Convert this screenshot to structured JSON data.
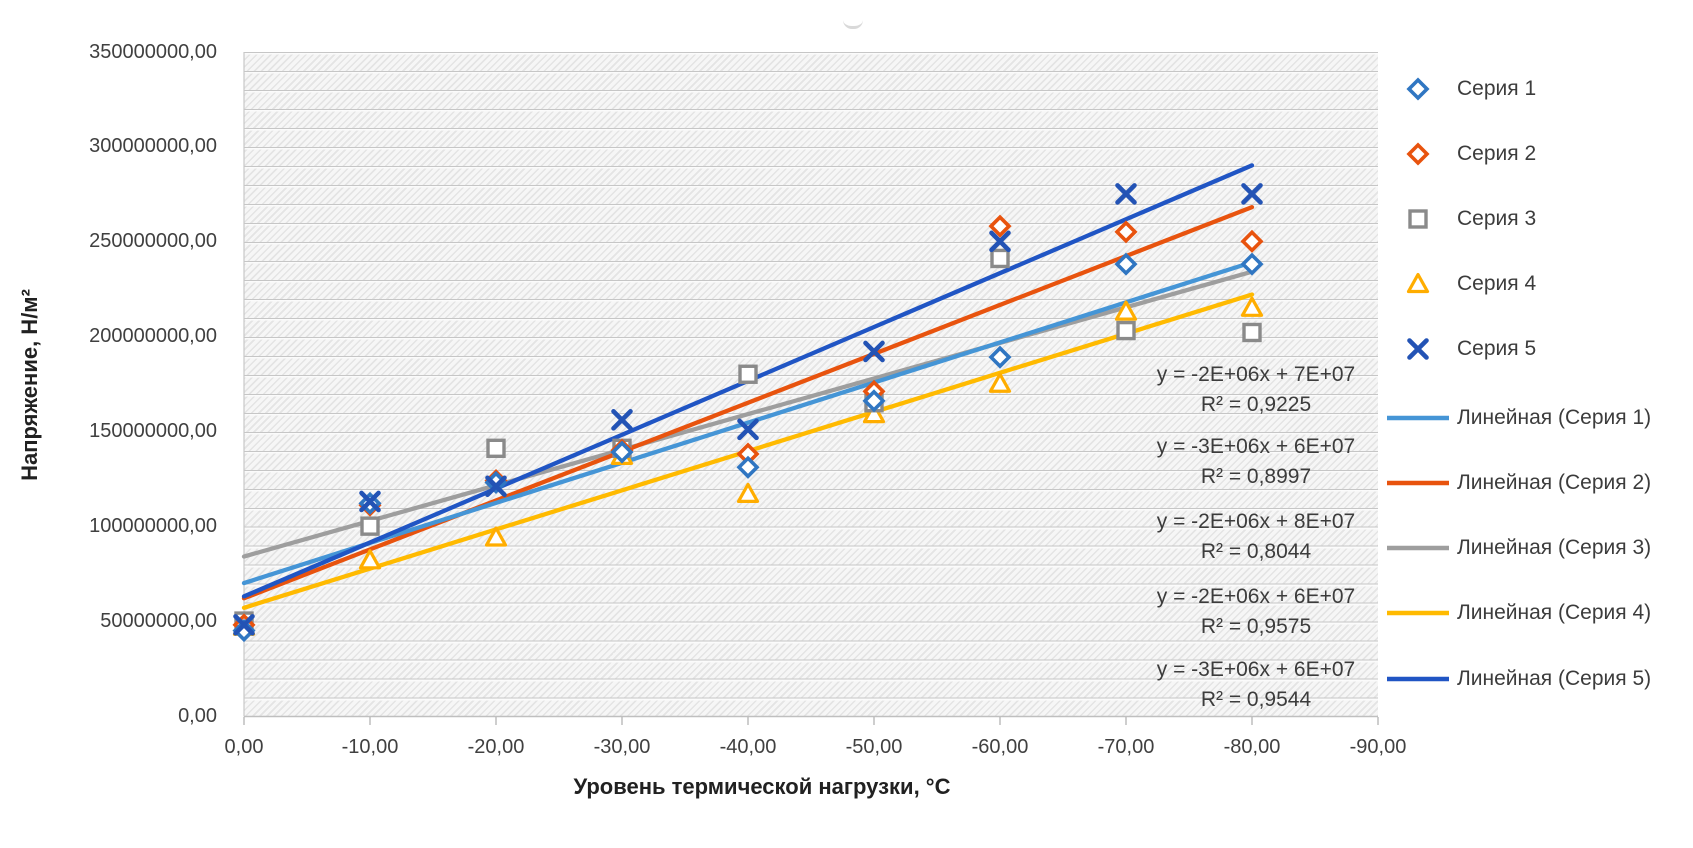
{
  "chart_data": {
    "type": "scatter",
    "title": "",
    "xlabel": "Уровень термической нагрузки, °C",
    "ylabel": "Напряжение, Н/м²",
    "xlim": [
      0,
      -90
    ],
    "ylim": [
      0,
      350000000
    ],
    "grid": "horizontal minor gridlines every 10000000, hatched plot area",
    "legend_position": "right",
    "x_tick_labels": [
      "0,00",
      "-10,00",
      "-20,00",
      "-30,00",
      "-40,00",
      "-50,00",
      "-60,00",
      "-70,00",
      "-80,00",
      "-90,00"
    ],
    "x_tick_values": [
      0,
      -10,
      -20,
      -30,
      -40,
      -50,
      -60,
      -70,
      -80,
      -90
    ],
    "y_tick_labels": [
      "0,00",
      "50000000,00",
      "100000000,00",
      "150000000,00",
      "200000000,00",
      "250000000,00",
      "300000000,00",
      "350000000,00"
    ],
    "y_tick_values": [
      0,
      50000000,
      100000000,
      150000000,
      200000000,
      250000000,
      300000000,
      350000000
    ],
    "x": [
      0,
      -10,
      -20,
      -30,
      -40,
      -50,
      -60,
      -70,
      -80
    ],
    "series": [
      {
        "name": "Серия 1",
        "marker": "diamond",
        "marker_color": "#3076C2",
        "line_color": "#4595D6",
        "values": [
          45000000,
          112000000,
          123000000,
          139000000,
          131000000,
          166000000,
          189000000,
          238000000,
          238000000
        ],
        "trend_label": "Линейная (Серия 1)",
        "trend_x": [
          0,
          -80
        ],
        "trend_y": [
          70000000,
          239000000
        ],
        "equation": "y = -2E+06x + 7E+07",
        "r2": "R² = 0,9225"
      },
      {
        "name": "Серия 2",
        "marker": "diamond",
        "marker_color": "#E8530E",
        "line_color": "#E8530E",
        "values": [
          48000000,
          111000000,
          124000000,
          140000000,
          138000000,
          171000000,
          258000000,
          255000000,
          250000000
        ],
        "trend_label": "Линейная (Серия 2)",
        "trend_x": [
          0,
          -80
        ],
        "trend_y": [
          62000000,
          268000000
        ],
        "equation": "y = -3E+06x + 6E+07",
        "r2": "R² = 0,8997"
      },
      {
        "name": "Серия 3",
        "marker": "square",
        "marker_color": "#8A8A8A",
        "line_color": "#9E9E9E",
        "values": [
          50000000,
          100000000,
          141000000,
          141000000,
          180000000,
          165000000,
          241000000,
          203000000,
          202000000
        ],
        "trend_label": "Линейная (Серия 3)",
        "trend_x": [
          0,
          -80
        ],
        "trend_y": [
          84000000,
          234000000
        ],
        "equation": "y = -2E+06x + 8E+07",
        "r2": "R² = 0,8044"
      },
      {
        "name": "Серия 4",
        "marker": "triangle",
        "marker_color": "#FFAD00",
        "line_color": "#FFBA00",
        "values": [
          47000000,
          82000000,
          94000000,
          137000000,
          117000000,
          159000000,
          175000000,
          213000000,
          215000000
        ],
        "trend_label": "Линейная (Серия 4)",
        "trend_x": [
          0,
          -80
        ],
        "trend_y": [
          57000000,
          222000000
        ],
        "equation": "y = -2E+06x + 6E+07",
        "r2": "R² = 0,9575"
      },
      {
        "name": "Серия 5",
        "marker": "x",
        "marker_color": "#2353B5",
        "line_color": "#2055C4",
        "values": [
          48000000,
          113000000,
          121000000,
          156000000,
          151000000,
          192000000,
          250000000,
          275000000,
          275000000
        ],
        "trend_label": "Линейная (Серия 5)",
        "trend_x": [
          0,
          -80
        ],
        "trend_y": [
          63000000,
          290000000
        ],
        "equation": "y = -3E+06x + 6E+07",
        "r2": "R² = 0,9544"
      }
    ]
  }
}
